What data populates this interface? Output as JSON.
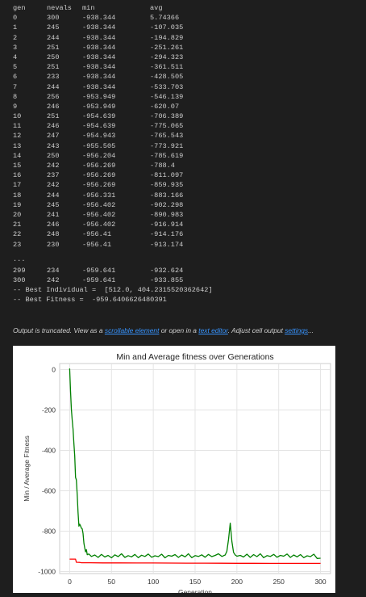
{
  "log": {
    "header": [
      "gen",
      "nevals",
      "min",
      "avg"
    ],
    "rows": [
      [
        "0",
        "300",
        "-938.344",
        "5.74366"
      ],
      [
        "1",
        "245",
        "-938.344",
        "-107.035"
      ],
      [
        "2",
        "244",
        "-938.344",
        "-194.829"
      ],
      [
        "3",
        "251",
        "-938.344",
        "-251.261"
      ],
      [
        "4",
        "250",
        "-938.344",
        "-294.323"
      ],
      [
        "5",
        "251",
        "-938.344",
        "-361.511"
      ],
      [
        "6",
        "233",
        "-938.344",
        "-428.505"
      ],
      [
        "7",
        "244",
        "-938.344",
        "-533.703"
      ],
      [
        "8",
        "256",
        "-953.949",
        "-546.139"
      ],
      [
        "9",
        "246",
        "-953.949",
        "-620.07"
      ],
      [
        "10",
        "251",
        "-954.639",
        "-706.389"
      ],
      [
        "11",
        "246",
        "-954.639",
        "-775.065"
      ],
      [
        "12",
        "247",
        "-954.943",
        "-765.543"
      ],
      [
        "13",
        "243",
        "-955.505",
        "-773.921"
      ],
      [
        "14",
        "250",
        "-956.204",
        "-785.619"
      ],
      [
        "15",
        "242",
        "-956.269",
        "-788.4"
      ],
      [
        "16",
        "237",
        "-956.269",
        "-811.097"
      ],
      [
        "17",
        "242",
        "-956.269",
        "-859.935"
      ],
      [
        "18",
        "244",
        "-956.331",
        "-883.166"
      ],
      [
        "19",
        "245",
        "-956.402",
        "-902.298"
      ],
      [
        "20",
        "241",
        "-956.402",
        "-890.983"
      ],
      [
        "21",
        "246",
        "-956.402",
        "-916.914"
      ],
      [
        "22",
        "248",
        "-956.41",
        "-914.176"
      ],
      [
        "23",
        "230",
        "-956.41",
        "-913.174"
      ]
    ],
    "ellipsis": "...",
    "tail_rows": [
      [
        "299",
        "234",
        "-959.641",
        "-932.624"
      ],
      [
        "300",
        "242",
        "-959.641",
        "-933.855"
      ]
    ],
    "best_individual": "-- Best Individual =  [512.0, 404.2315520362642]",
    "best_fitness": "-- Best Fitness =  -959.6406626480391"
  },
  "truncation": {
    "text1": "Output is truncated. View as a ",
    "link1": "scrollable element",
    "text2": " or open in a ",
    "link2": "text editor",
    "text3": ". Adjust cell output ",
    "link3": "settings",
    "text4": "..."
  },
  "chart_data": {
    "type": "line",
    "title": "Min and Average fitness over Generations",
    "xlabel": "Generation",
    "ylabel": "Min / Average Fitness",
    "xlim": [
      -12,
      312
    ],
    "ylim": [
      -1010,
      30
    ],
    "xticks": [
      0,
      50,
      100,
      150,
      200,
      250,
      300
    ],
    "yticks": [
      0,
      -200,
      -400,
      -600,
      -800,
      -1000
    ],
    "grid": true,
    "legend": "none",
    "series": [
      {
        "color": "#ff0000",
        "x": [
          0,
          1,
          2,
          3,
          4,
          5,
          6,
          7,
          8,
          10,
          12,
          13,
          14,
          15,
          18,
          19,
          22,
          24,
          40,
          60,
          80,
          100,
          120,
          140,
          160,
          180,
          200,
          220,
          240,
          260,
          280,
          300
        ],
        "y": [
          -938.3,
          -938.3,
          -938.3,
          -938.3,
          -938.3,
          -938.3,
          -938.3,
          -938.3,
          -953.9,
          -954.6,
          -954.9,
          -955.5,
          -956.2,
          -956.3,
          -956.3,
          -956.4,
          -956.4,
          -956.4,
          -957.0,
          -957.3,
          -957.6,
          -957.8,
          -958.0,
          -958.2,
          -958.5,
          -958.8,
          -959.0,
          -959.2,
          -959.4,
          -959.5,
          -959.6,
          -959.6
        ]
      },
      {
        "color": "#008000",
        "x": [
          0,
          1,
          2,
          3,
          4,
          5,
          6,
          7,
          8,
          9,
          10,
          11,
          12,
          13,
          14,
          15,
          16,
          17,
          18,
          19,
          20,
          21,
          22,
          23,
          26,
          30,
          34,
          38,
          42,
          46,
          50,
          54,
          58,
          62,
          66,
          70,
          74,
          78,
          82,
          86,
          90,
          94,
          98,
          102,
          106,
          110,
          114,
          118,
          122,
          126,
          130,
          134,
          138,
          142,
          146,
          150,
          154,
          158,
          162,
          166,
          170,
          174,
          178,
          182,
          186,
          188,
          190,
          192,
          194,
          196,
          198,
          200,
          204,
          208,
          212,
          216,
          220,
          224,
          228,
          232,
          236,
          240,
          244,
          248,
          252,
          256,
          260,
          264,
          268,
          272,
          276,
          280,
          284,
          288,
          292,
          296,
          300
        ],
        "y": [
          5.74,
          -107.0,
          -194.8,
          -251.3,
          -294.3,
          -361.5,
          -428.5,
          -533.7,
          -546.1,
          -620.1,
          -706.4,
          -775.1,
          -765.5,
          -773.9,
          -785.6,
          -788.4,
          -811.1,
          -859.9,
          -883.2,
          -902.3,
          -891.0,
          -916.9,
          -914.2,
          -913.2,
          -925,
          -918,
          -930,
          -915,
          -928,
          -920,
          -932,
          -917,
          -926,
          -912,
          -930,
          -921,
          -927,
          -915,
          -931,
          -919,
          -925,
          -913,
          -929,
          -922,
          -926,
          -914,
          -932,
          -920,
          -924,
          -916,
          -930,
          -918,
          -927,
          -912,
          -931,
          -921,
          -925,
          -917,
          -929,
          -915,
          -926,
          -920,
          -912,
          -925,
          -918,
          -900,
          -840,
          -760,
          -850,
          -905,
          -918,
          -924,
          -920,
          -928,
          -914,
          -930,
          -916,
          -926,
          -912,
          -931,
          -921,
          -925,
          -915,
          -929,
          -920,
          -924,
          -913,
          -930,
          -918,
          -927,
          -916,
          -931,
          -922,
          -926,
          -914,
          -935,
          -933.9
        ]
      }
    ]
  }
}
